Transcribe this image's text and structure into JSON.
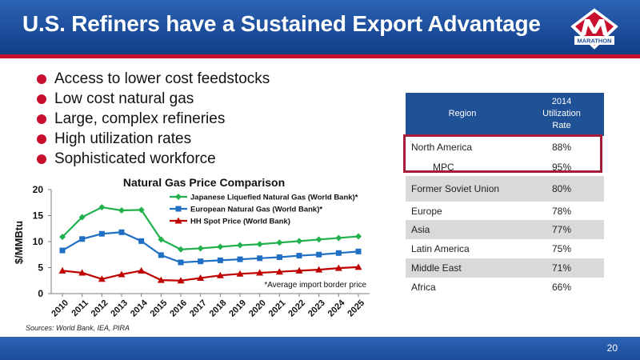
{
  "header": {
    "title": "U.S. Refiners have a Sustained Export Advantage",
    "logo_text": "MARATHON"
  },
  "bullets": [
    "Access to lower cost feedstocks",
    "Low cost natural gas",
    "Large, complex refineries",
    "High utilization rates",
    "Sophisticated workforce"
  ],
  "table": {
    "headers": {
      "region": "Region",
      "rate": "2014\nUtilization\nRate"
    },
    "rows": [
      {
        "region": "North America",
        "rate": "88%"
      },
      {
        "region": "MPC",
        "rate": "95%"
      },
      {
        "region": "Former Soviet Union",
        "rate": "80%"
      },
      {
        "region": "Europe",
        "rate": "78%"
      },
      {
        "region": "Asia",
        "rate": "77%"
      },
      {
        "region": "Latin America",
        "rate": "75%"
      },
      {
        "region": "Middle East",
        "rate": "71%"
      },
      {
        "region": "Africa",
        "rate": "66%"
      }
    ]
  },
  "chart_data": {
    "type": "line",
    "title": "Natural Gas Price Comparison",
    "ylabel": "$/MMBtu",
    "xlabel": "",
    "ylim": [
      0,
      20
    ],
    "yticks": [
      0,
      5,
      10,
      15,
      20
    ],
    "x": [
      "2010",
      "2011",
      "2012",
      "2013",
      "2014",
      "2015",
      "2016",
      "2017",
      "2018",
      "2019",
      "2020",
      "2021",
      "2022",
      "2023",
      "2024",
      "2025"
    ],
    "legend_position": "top-center",
    "grid": false,
    "series": [
      {
        "name": "Japanese Liquefied Natural Gas (World Bank)*",
        "color": "#21b04b",
        "marker": "diamond",
        "values": [
          10.9,
          14.7,
          16.6,
          16.0,
          16.1,
          10.4,
          8.5,
          8.7,
          9.0,
          9.3,
          9.5,
          9.8,
          10.1,
          10.4,
          10.7,
          11.0
        ]
      },
      {
        "name": "European Natural Gas (World Bank)*",
        "color": "#1f6fc5",
        "marker": "square",
        "values": [
          8.3,
          10.5,
          11.5,
          11.8,
          10.1,
          7.4,
          6.0,
          6.2,
          6.4,
          6.6,
          6.8,
          7.0,
          7.3,
          7.5,
          7.8,
          8.1
        ]
      },
      {
        "name": "HH Spot Price (World Bank)",
        "color": "#c00000",
        "marker": "triangle",
        "values": [
          4.4,
          4.0,
          2.8,
          3.7,
          4.4,
          2.6,
          2.5,
          3.0,
          3.5,
          3.8,
          4.0,
          4.2,
          4.4,
          4.6,
          4.9,
          5.1
        ]
      }
    ],
    "annotation": "*Average import border price"
  },
  "footer": {
    "sources": "Sources: World Bank, IEA, PIRA",
    "page_number": "20"
  },
  "colors": {
    "header_blue": "#1d4e9c",
    "accent_red": "#c8102e",
    "table_header": "#1f5196",
    "highlight_border": "#a51b3a"
  }
}
